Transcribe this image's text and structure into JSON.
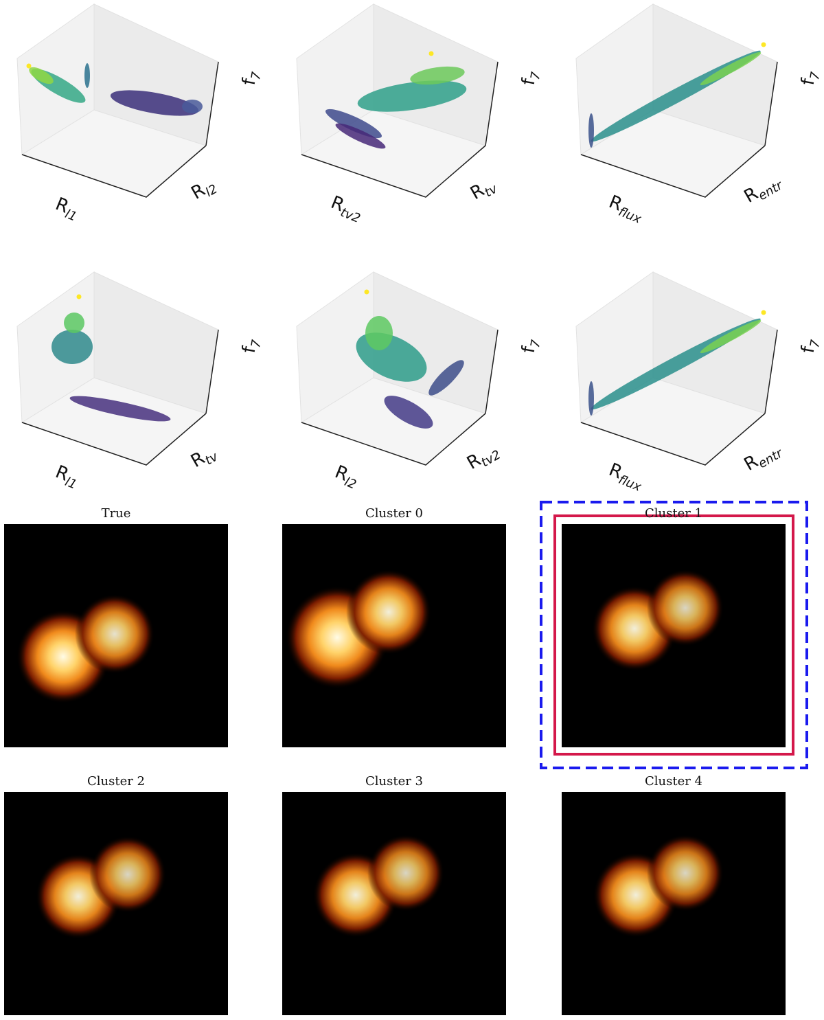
{
  "panels": [
    {
      "x_label": {
        "text": "R",
        "sub": "l1"
      },
      "y_label": {
        "text": "R",
        "sub": "l2"
      },
      "z_label": {
        "text": "f",
        "sub": "7"
      }
    },
    {
      "x_label": {
        "text": "R",
        "sub": "tv2"
      },
      "y_label": {
        "text": "R",
        "sub": "tv"
      },
      "z_label": {
        "text": "f",
        "sub": "7"
      }
    },
    {
      "x_label": {
        "text": "R",
        "sub": "flux"
      },
      "y_label": {
        "text": "R",
        "sub": "entr"
      },
      "z_label": {
        "text": "f",
        "sub": "7"
      }
    },
    {
      "x_label": {
        "text": "R",
        "sub": "l1"
      },
      "y_label": {
        "text": "R",
        "sub": "tv"
      },
      "z_label": {
        "text": "f",
        "sub": "7"
      }
    },
    {
      "x_label": {
        "text": "R",
        "sub": "l2"
      },
      "y_label": {
        "text": "R",
        "sub": "tv2"
      },
      "z_label": {
        "text": "f",
        "sub": "7"
      }
    },
    {
      "x_label": {
        "text": "R",
        "sub": "flux"
      },
      "y_label": {
        "text": "R",
        "sub": "entr"
      },
      "z_label": {
        "text": "f",
        "sub": "7"
      }
    }
  ],
  "images": [
    {
      "title": "True"
    },
    {
      "title": "Cluster 0"
    },
    {
      "title": "Cluster 1"
    },
    {
      "title": "Cluster 2"
    },
    {
      "title": "Cluster 3"
    },
    {
      "title": "Cluster 4"
    }
  ]
}
